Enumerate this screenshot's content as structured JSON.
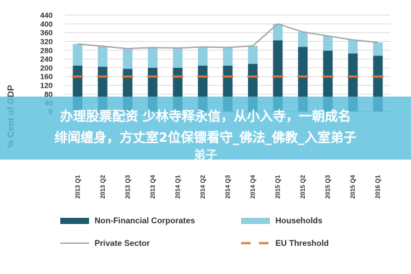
{
  "chart_data": {
    "type": "bar",
    "stacked": true,
    "categories": [
      "2013 Q1",
      "2013 Q2",
      "2013 Q3",
      "2013 Q4",
      "2014 Q1",
      "2014 Q2",
      "2014 Q3",
      "2014 Q4",
      "2015 Q1",
      "2015 Q2",
      "2015 Q3",
      "2015 Q4",
      "2016 Q1"
    ],
    "series": [
      {
        "name": "Non-Financial Corporates",
        "type": "bar",
        "color": "#1f5b6e",
        "values": [
          210,
          205,
          195,
          200,
          200,
          210,
          210,
          218,
          325,
          295,
          278,
          265,
          255
        ]
      },
      {
        "name": "Households",
        "type": "bar",
        "color": "#8fcfe1",
        "values": [
          98,
          93,
          92,
          92,
          90,
          85,
          82,
          82,
          75,
          68,
          67,
          62,
          60
        ]
      },
      {
        "name": "Private Sector",
        "type": "line",
        "color": "#a6a6a6",
        "values": [
          308,
          298,
          287,
          292,
          290,
          295,
          292,
          300,
          400,
          363,
          345,
          327,
          315
        ]
      },
      {
        "name": "EU Threshold",
        "type": "line",
        "style": "dashed",
        "color": "#e8743b",
        "values": [
          160,
          160,
          160,
          160,
          160,
          160,
          160,
          160,
          160,
          160,
          160,
          160,
          160
        ]
      }
    ],
    "ylabel": "% Cent of GDP",
    "ylim": [
      0,
      440
    ],
    "yticks": [
      0,
      40,
      80,
      120,
      160,
      200,
      240,
      280,
      320,
      360,
      400,
      440
    ],
    "grid": true,
    "legend_position": "bottom"
  },
  "overlay": {
    "line1": "办理股票配资 少林寺释永信，从小入寺，一朝成名",
    "line2": "绯闻缠身，方丈室2位保镖看守_佛法_佛教_入室弟子",
    "line3": "弟子"
  }
}
